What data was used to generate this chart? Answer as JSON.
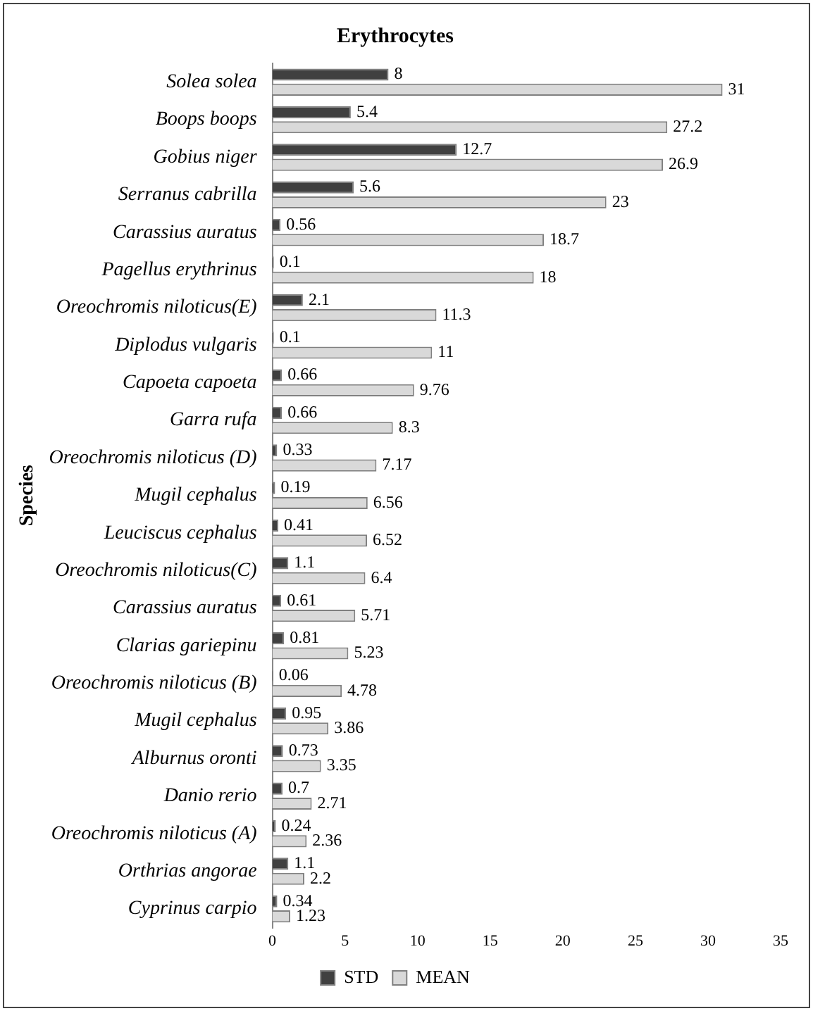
{
  "chart_data": {
    "type": "bar",
    "orientation": "horizontal",
    "title": "Erythrocytes",
    "ylabel": "Species",
    "categories": [
      "Solea solea",
      "Boops boops",
      "Gobius niger",
      "Serranus cabrilla",
      "Carassius auratus",
      "Pagellus erythrinus",
      "Oreochromis niloticus(E)",
      "Diplodus vulgaris",
      "Capoeta capoeta",
      "Garra rufa",
      "Oreochromis niloticus (D)",
      "Mugil cephalus",
      "Leuciscus cephalus",
      "Oreochromis niloticus(C)",
      "Carassius auratus",
      "Clarias gariepinu",
      "Oreochromis niloticus (B)",
      "Mugil cephalus",
      "Alburnus oronti",
      "Danio rerio",
      "Oreochromis niloticus (A)",
      "Orthrias angorae",
      "Cyprinus carpio"
    ],
    "series": [
      {
        "name": "STD",
        "color": "#404040",
        "values": [
          8,
          5.4,
          12.7,
          5.6,
          0.56,
          0.1,
          2.1,
          0.1,
          0.66,
          0.66,
          0.33,
          0.19,
          0.41,
          1.1,
          0.61,
          0.81,
          0.06,
          0.95,
          0.73,
          0.7,
          0.24,
          1.1,
          0.34
        ]
      },
      {
        "name": "MEAN",
        "color": "#d9d9d9",
        "values": [
          31,
          27.2,
          26.9,
          23,
          18.7,
          18,
          11.3,
          11,
          9.76,
          8.3,
          7.17,
          6.56,
          6.52,
          6.4,
          5.71,
          5.23,
          4.78,
          3.86,
          3.35,
          2.71,
          2.36,
          2.2,
          1.23
        ]
      }
    ],
    "xlim": [
      0,
      35
    ],
    "xticks": [
      0,
      5,
      10,
      15,
      20,
      25,
      30,
      35
    ],
    "grid": false,
    "legend": "bottom",
    "data_labels": true
  }
}
